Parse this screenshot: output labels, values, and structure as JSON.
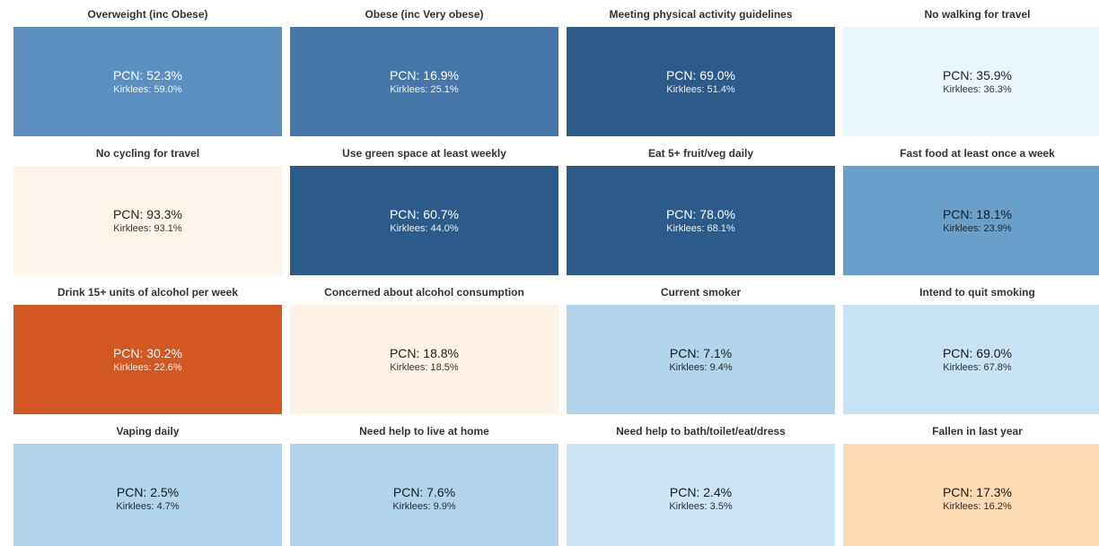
{
  "tiles": [
    {
      "title": "Overweight (inc Obese)",
      "pcn": "PCN: 52.3%",
      "kirklees": "Kirklees: 59.0%",
      "color": "#5b8fbf",
      "text_color": "#ffffff"
    },
    {
      "title": "Obese (inc Very obese)",
      "pcn": "PCN: 16.9%",
      "kirklees": "Kirklees: 25.1%",
      "color": "#4677a8",
      "text_color": "#ffffff"
    },
    {
      "title": "Meeting physical activity guidelines",
      "pcn": "PCN: 69.0%",
      "kirklees": "Kirklees: 51.4%",
      "color": "#2c5b8a",
      "text_color": "#ffffff"
    },
    {
      "title": "No walking for travel",
      "pcn": "PCN: 35.9%",
      "kirklees": "Kirklees: 36.3%",
      "color": "#eaf5fc",
      "text_color": "#222222"
    },
    {
      "title": "No cycling for travel",
      "pcn": "PCN: 93.3%",
      "kirklees": "Kirklees: 93.1%",
      "color": "#fef4ea",
      "text_color": "#222222"
    },
    {
      "title": "Use green space at least weekly",
      "pcn": "PCN: 60.7%",
      "kirklees": "Kirklees: 44.0%",
      "color": "#2c5b8a",
      "text_color": "#ffffff"
    },
    {
      "title": "Eat 5+ fruit/veg daily",
      "pcn": "PCN: 78.0%",
      "kirklees": "Kirklees: 68.1%",
      "color": "#2c5b8a",
      "text_color": "#ffffff"
    },
    {
      "title": "Fast food at least once a week",
      "pcn": "PCN: 18.1%",
      "kirklees": "Kirklees: 23.9%",
      "color": "#6a9fca",
      "text_color": "#1a1a1a"
    },
    {
      "title": "Drink 15+ units of alcohol per week",
      "pcn": "PCN: 30.2%",
      "kirklees": "Kirklees: 22.6%",
      "color": "#d35722",
      "text_color": "#ffffff"
    },
    {
      "title": "Concerned about alcohol consumption",
      "pcn": "PCN: 18.8%",
      "kirklees": "Kirklees: 18.5%",
      "color": "#fef1e6",
      "text_color": "#222222"
    },
    {
      "title": "Current smoker",
      "pcn": "PCN: 7.1%",
      "kirklees": "Kirklees: 9.4%",
      "color": "#afd4eb",
      "text_color": "#1a1a1a"
    },
    {
      "title": "Intend to quit smoking",
      "pcn": "PCN: 69.0%",
      "kirklees": "Kirklees: 67.8%",
      "color": "#c7e4f6",
      "text_color": "#1a1a1a"
    },
    {
      "title": "Vaping daily",
      "pcn": "PCN: 2.5%",
      "kirklees": "Kirklees: 4.7%",
      "color": "#afd4eb",
      "text_color": "#1a1a1a"
    },
    {
      "title": "Need help to live at home",
      "pcn": "PCN: 7.6%",
      "kirklees": "Kirklees: 9.9%",
      "color": "#afd4eb",
      "text_color": "#1a1a1a"
    },
    {
      "title": "Need help to bath/toilet/eat/dress",
      "pcn": "PCN: 2.4%",
      "kirklees": "Kirklees: 3.5%",
      "color": "#cbe5f7",
      "text_color": "#1a1a1a"
    },
    {
      "title": "Fallen in last year",
      "pcn": "PCN: 17.3%",
      "kirklees": "Kirklees: 16.2%",
      "color": "#fdd9b4",
      "text_color": "#1a1a1a"
    }
  ]
}
